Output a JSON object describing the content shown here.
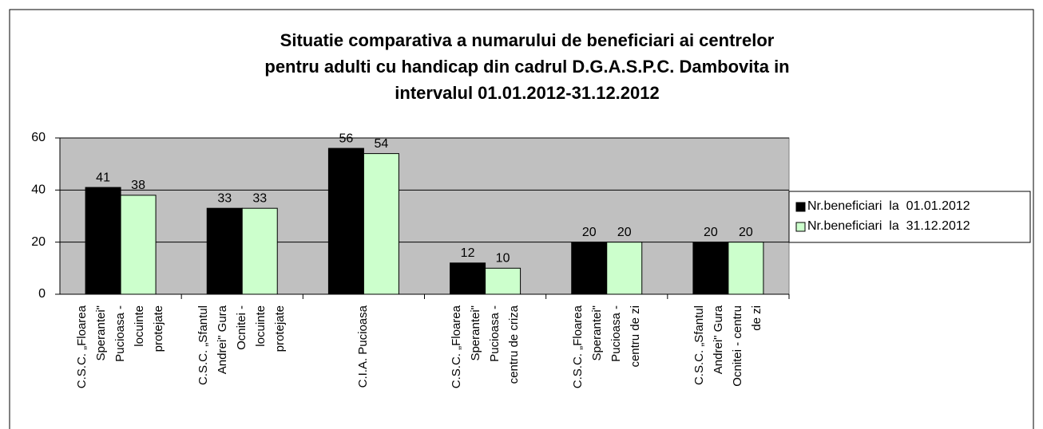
{
  "chart_data": {
    "type": "bar",
    "title": [
      "Situatie comparativa a numarului de  beneficiari ai centrelor",
      "pentru adulti cu handicap din cadrul D.G.A.S.P.C. Dambovita in",
      "intervalul 01.01.2012-31.12.2012"
    ],
    "categories": [
      "C.S.C. „Floarea Sperantei\" Pucioasa - locuinte protejate",
      "C.S.C. „Sfantul Andrei\" Gura Ocnitei - locuinte protejate",
      "C.I.A. Pucioasa",
      "C.S.C. „Floarea Sperantei\" Pucioasa - centru de criza",
      "C.S.C. „Floarea Sperantei\" Pucioasa - centru de zi",
      "C.S.C. „Sfantul Andrei\" Gura Ocnitei - centru de zi"
    ],
    "series": [
      {
        "name": "Nr.beneficiari  la  01.01.2012",
        "color": "#000000",
        "values": [
          41,
          33,
          56,
          12,
          20,
          20
        ]
      },
      {
        "name": "Nr.beneficiari  la  31.12.2012",
        "color": "#ccffcc",
        "values": [
          38,
          33,
          54,
          10,
          20,
          20
        ]
      }
    ],
    "ylim": [
      0,
      60
    ],
    "yticks": [
      0,
      20,
      40,
      60
    ],
    "grid": true,
    "legend": "right"
  }
}
